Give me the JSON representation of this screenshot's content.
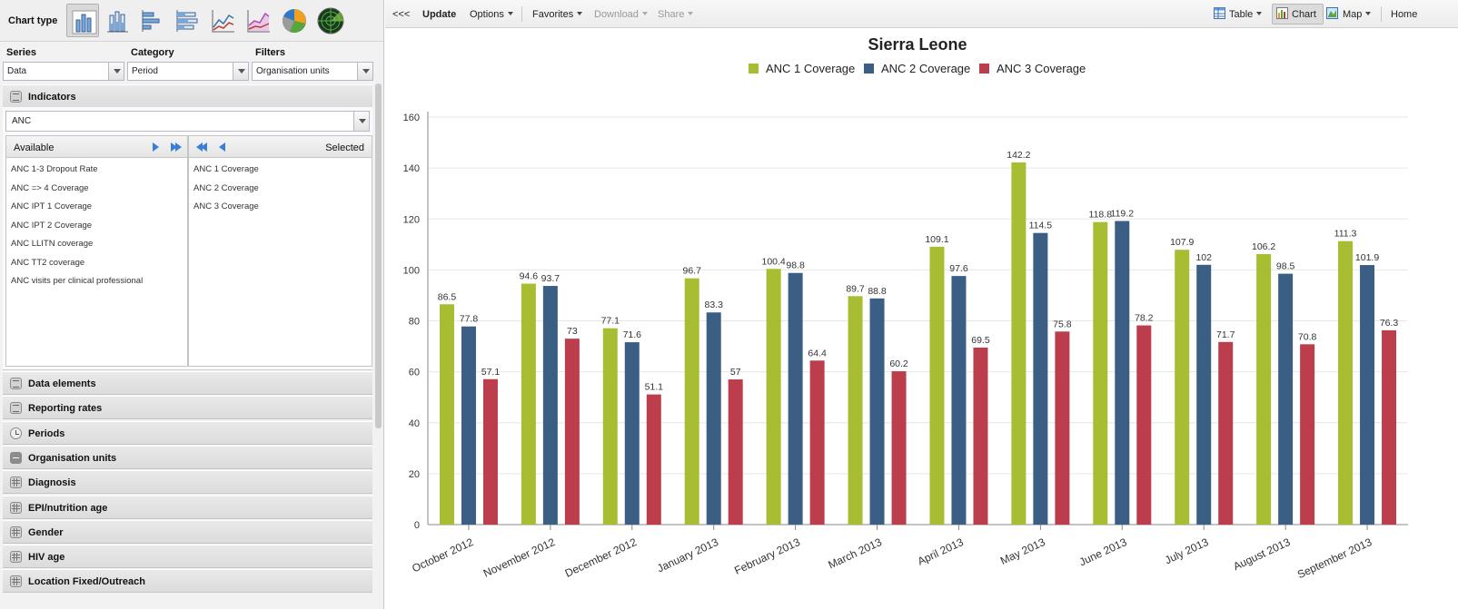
{
  "left": {
    "chart_type_label": "Chart type",
    "chart_types": [
      {
        "icon": "column-chart-icon",
        "active": true
      },
      {
        "icon": "stacked-column-chart-icon",
        "active": false
      },
      {
        "icon": "bar-chart-icon",
        "active": false
      },
      {
        "icon": "stacked-bar-chart-icon",
        "active": false
      },
      {
        "icon": "line-chart-icon",
        "active": false
      },
      {
        "icon": "area-chart-icon",
        "active": false
      },
      {
        "icon": "pie-chart-icon",
        "active": false
      },
      {
        "icon": "radar-chart-icon",
        "active": false
      }
    ],
    "series_label": "Series",
    "series_value": "Data",
    "category_label": "Category",
    "category_value": "Period",
    "filters_label": "Filters",
    "filters_value": "Organisation units",
    "indicators": {
      "title": "Indicators",
      "group_value": "ANC",
      "available_label": "Available",
      "selected_label": "Selected",
      "available": [
        "ANC 1-3 Dropout Rate",
        "ANC => 4 Coverage",
        "ANC IPT 1 Coverage",
        "ANC IPT 2 Coverage",
        "ANC LLITN coverage",
        "ANC TT2 coverage",
        "ANC visits per clinical professional"
      ],
      "selected": [
        "ANC 1 Coverage",
        "ANC 2 Coverage",
        "ANC 3 Coverage"
      ]
    },
    "sections": [
      {
        "label": "Data elements",
        "icon": "data-element-icon"
      },
      {
        "label": "Reporting rates",
        "icon": "data-element-icon"
      },
      {
        "label": "Periods",
        "icon": "clock-icon"
      },
      {
        "label": "Organisation units",
        "icon": "plus-icon"
      },
      {
        "label": "Diagnosis",
        "icon": "grid-icon"
      },
      {
        "label": "EPI/nutrition age",
        "icon": "grid-icon"
      },
      {
        "label": "Gender",
        "icon": "grid-icon"
      },
      {
        "label": "HIV age",
        "icon": "grid-icon"
      },
      {
        "label": "Location Fixed/Outreach",
        "icon": "grid-icon"
      }
    ]
  },
  "toolbar": {
    "collapse": "<<<",
    "update": "Update",
    "options": "Options",
    "favorites": "Favorites",
    "download": "Download",
    "share": "Share",
    "table": "Table",
    "chart": "Chart",
    "map": "Map",
    "home": "Home"
  },
  "colors": {
    "series": [
      "#a8bd32",
      "#3b5e84",
      "#bc3e4d"
    ]
  },
  "chart_data": {
    "type": "bar",
    "title": "Sierra Leone",
    "categories": [
      "October 2012",
      "November 2012",
      "December 2012",
      "January 2013",
      "February 2013",
      "March 2013",
      "April 2013",
      "May 2013",
      "June 2013",
      "July 2013",
      "August 2013",
      "September 2013"
    ],
    "series": [
      {
        "name": "ANC 1 Coverage",
        "values": [
          86.5,
          94.6,
          77.1,
          96.7,
          100.4,
          89.7,
          109.1,
          142.2,
          118.8,
          107.9,
          106.2,
          111.3
        ]
      },
      {
        "name": "ANC 2 Coverage",
        "values": [
          77.8,
          93.7,
          71.6,
          83.3,
          98.8,
          88.8,
          97.6,
          114.5,
          119.2,
          102,
          98.5,
          101.9
        ]
      },
      {
        "name": "ANC 3 Coverage",
        "values": [
          57.1,
          73,
          51.1,
          57,
          64.4,
          60.2,
          69.5,
          75.8,
          78.2,
          71.7,
          70.8,
          76.3
        ]
      }
    ],
    "ylim": [
      0,
      160
    ],
    "yticks": [
      0,
      20,
      40,
      60,
      80,
      100,
      120,
      140,
      160
    ],
    "legend": "top-center",
    "grid": true
  }
}
